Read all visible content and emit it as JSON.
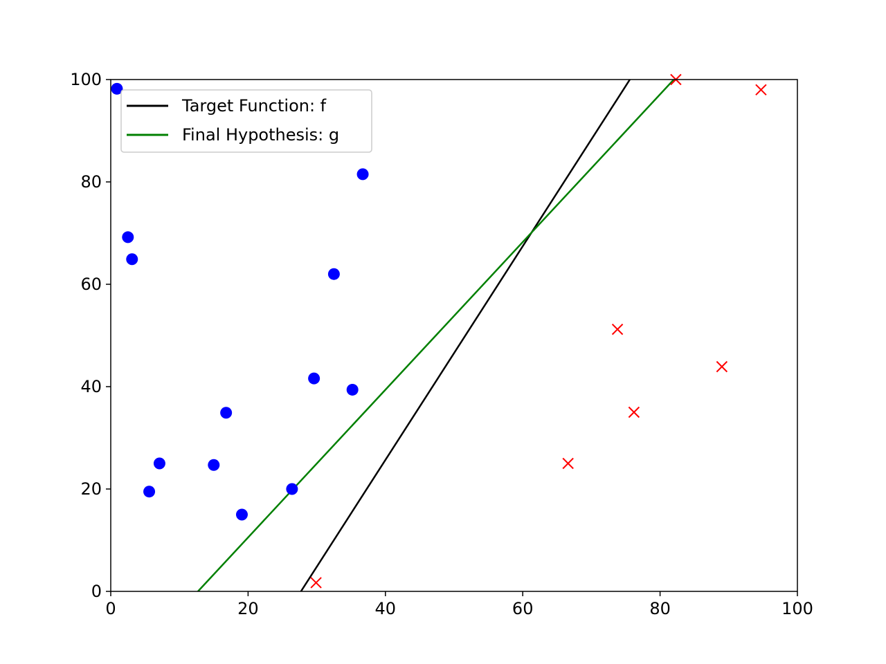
{
  "chart_data": {
    "type": "scatter",
    "title": "",
    "xlabel": "",
    "ylabel": "",
    "xlim": [
      0,
      100
    ],
    "ylim": [
      0,
      100
    ],
    "xticks": [
      0,
      20,
      40,
      60,
      80,
      100
    ],
    "yticks": [
      0,
      20,
      40,
      60,
      80,
      100
    ],
    "x_tick_labels": [
      "0",
      "20",
      "40",
      "60",
      "80",
      "100"
    ],
    "y_tick_labels": [
      "0",
      "20",
      "40",
      "60",
      "80",
      "100"
    ],
    "grid": false,
    "legend_position": "top-left",
    "lines": [
      {
        "name": "Target Function: f",
        "color": "#000000",
        "x": [
          27.7,
          75.6
        ],
        "y": [
          0,
          100
        ]
      },
      {
        "name": "Final Hypothesis: g",
        "color": "#008000",
        "x": [
          12.7,
          82.0
        ],
        "y": [
          0,
          100
        ]
      }
    ],
    "points": [
      {
        "marker": "circle",
        "color": "#0000ff",
        "x": [
          0.9,
          2.5,
          3.1,
          5.6,
          7.1,
          15.0,
          16.8,
          19.1,
          26.4,
          29.6,
          32.5,
          35.2,
          36.7
        ],
        "y": [
          98.2,
          69.2,
          64.9,
          19.5,
          25.0,
          24.7,
          34.9,
          15.0,
          20.0,
          41.6,
          62.0,
          39.4,
          81.5
        ]
      },
      {
        "marker": "x",
        "color": "#ff0000",
        "x": [
          29.9,
          66.6,
          73.8,
          76.2,
          82.3,
          89.0,
          94.7
        ],
        "y": [
          1.7,
          25.0,
          51.2,
          35.0,
          100.0,
          43.9,
          98.0
        ]
      }
    ]
  }
}
